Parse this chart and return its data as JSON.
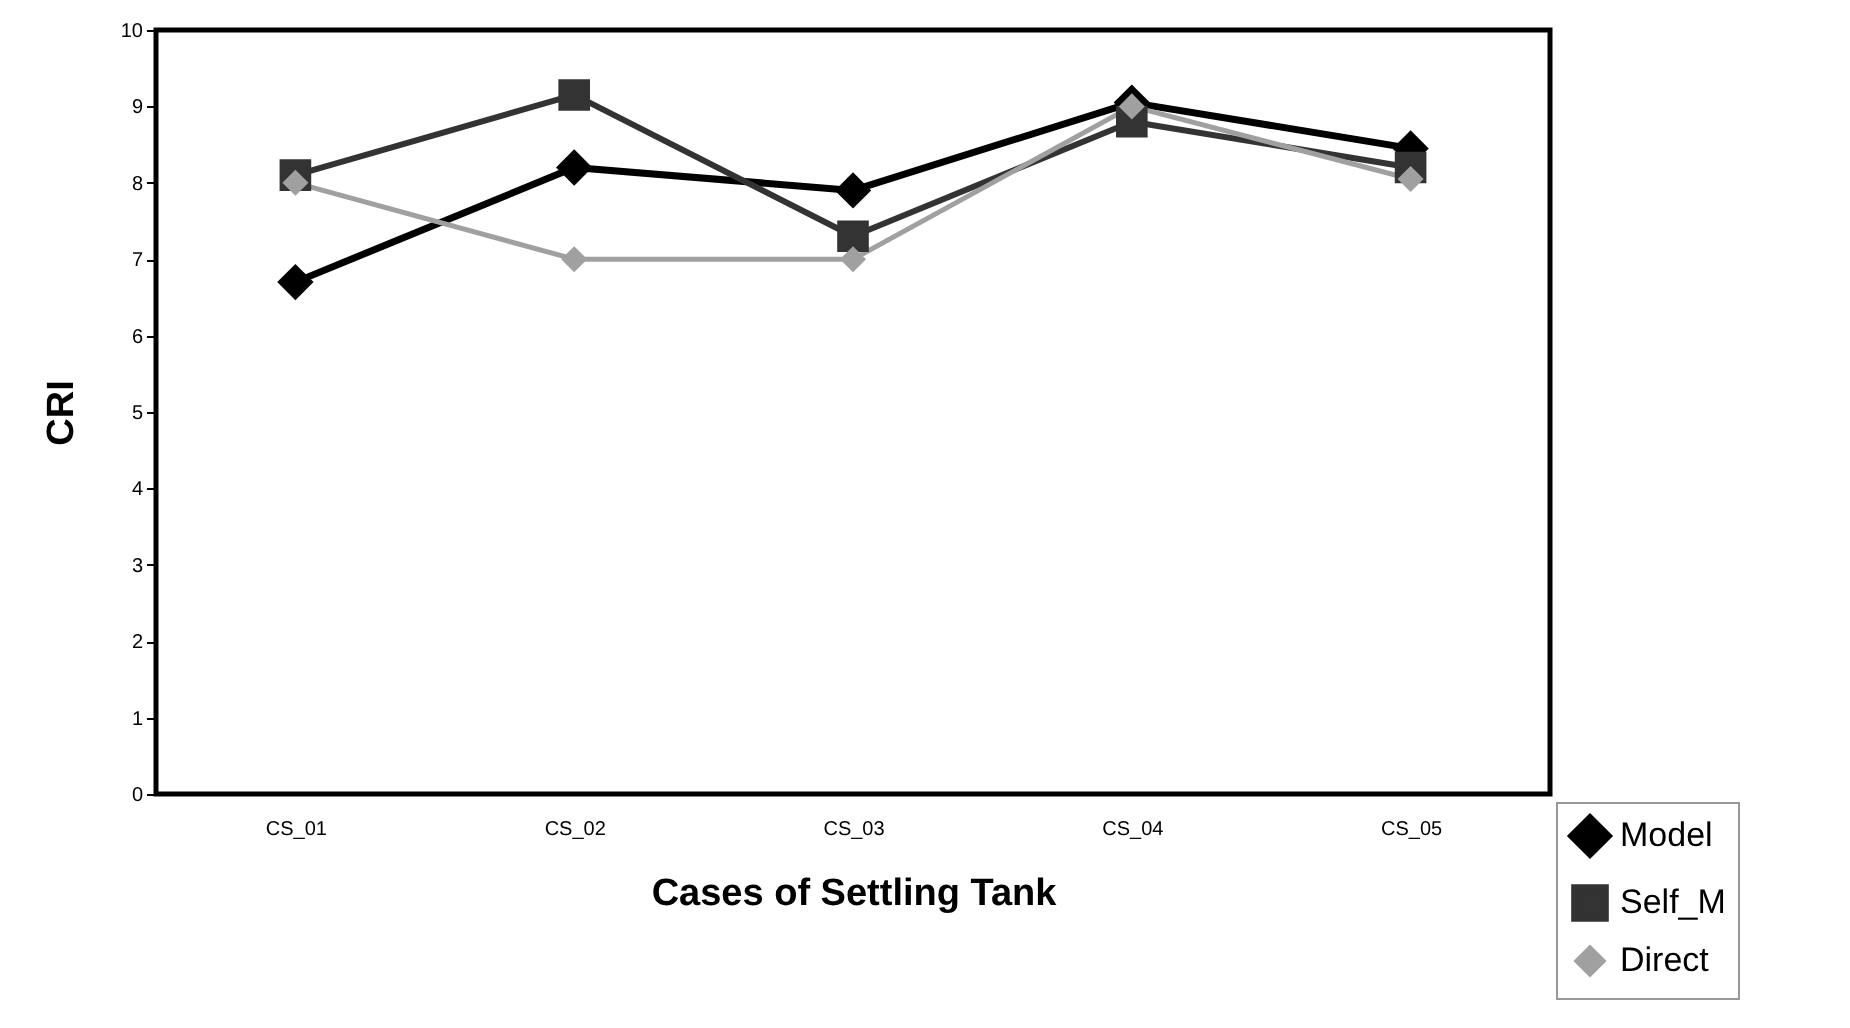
{
  "chart_data": {
    "type": "line",
    "xlabel": "Cases  of Settling Tank",
    "ylabel": "CRI",
    "categories": [
      "CS_01",
      "CS_02",
      "CS_03",
      "CS_04",
      "CS_05"
    ],
    "series": [
      {
        "name": "Model",
        "color": "#000000",
        "marker": "diamond",
        "values": [
          6.7,
          8.2,
          7.9,
          9.05,
          8.45
        ]
      },
      {
        "name": "Self_M",
        "color": "#333333",
        "marker": "square",
        "values": [
          8.1,
          9.15,
          7.3,
          8.8,
          8.2
        ]
      },
      {
        "name": "Direct",
        "color": "#a0a0a0",
        "marker": "diamond",
        "values": [
          8.0,
          7.0,
          7.0,
          9.0,
          8.05
        ]
      }
    ],
    "ylim": [
      0,
      10
    ],
    "yticks": [
      0,
      1,
      2,
      3,
      4,
      5,
      6,
      7,
      8,
      9,
      10
    ],
    "grid": false,
    "legend": "bottom right"
  }
}
